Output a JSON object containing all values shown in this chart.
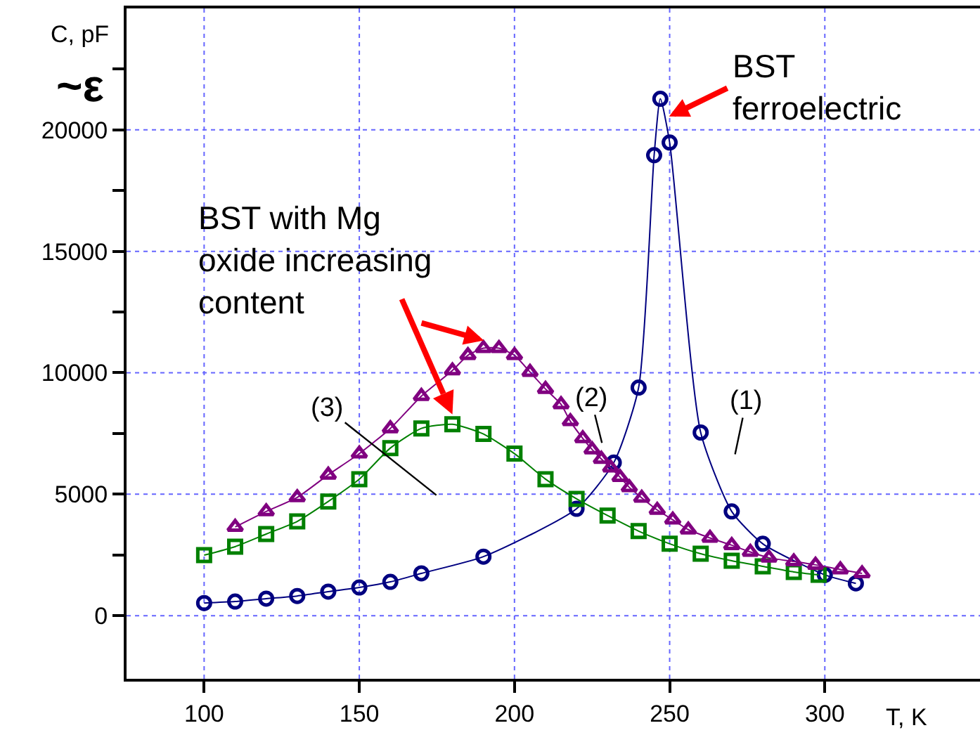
{
  "chart_data": {
    "type": "line",
    "xlabel": "T, K",
    "ylabel": "C, pF",
    "xlim": [
      75,
      350
    ],
    "xticks": [
      100,
      150,
      200,
      250,
      300
    ],
    "ylim": [
      -2600,
      25000
    ],
    "yticks": [
      0,
      {
        "value": 2500,
        "label": null
      },
      5000,
      {
        "value": 7500,
        "label": null
      },
      10000,
      {
        "value": 12500,
        "label": null
      },
      15000,
      {
        "value": 17500,
        "label": null
      },
      20000,
      {
        "value": 22500,
        "label": null
      }
    ],
    "grid": true,
    "line_style": "solid",
    "series": [
      {
        "color": "#000080",
        "marker": "circle",
        "x": [
          100,
          110,
          120,
          130,
          140,
          150,
          160,
          170,
          190,
          220,
          232,
          240,
          245,
          247,
          250,
          260,
          270,
          280,
          300,
          310
        ],
        "values": [
          520,
          580,
          700,
          810,
          990,
          1160,
          1390,
          1740,
          2430,
          4400,
          6300,
          9390,
          18960,
          21280,
          19480,
          7540,
          4290,
          2960,
          1680,
          1330
        ]
      },
      {
        "color": "#008000",
        "marker": "square",
        "x": [
          100,
          110,
          120,
          130,
          140,
          150,
          160,
          170,
          180,
          190,
          200,
          210,
          220,
          230,
          240,
          250,
          260,
          270,
          280,
          290,
          298
        ],
        "values": [
          2490,
          2840,
          3360,
          3880,
          4700,
          5620,
          6900,
          7710,
          7880,
          7480,
          6670,
          5620,
          4810,
          4120,
          3480,
          2960,
          2550,
          2260,
          2030,
          1800,
          1680
        ]
      },
      {
        "color": "#800080",
        "marker": "triangle",
        "x": [
          110,
          120,
          130,
          140,
          150,
          160,
          170,
          180,
          185,
          190,
          195,
          200,
          205,
          210,
          215,
          218,
          222,
          225,
          228,
          231,
          234,
          237,
          241,
          246,
          251,
          256,
          263,
          270,
          276,
          282,
          290,
          297,
          305,
          312
        ],
        "values": [
          3650,
          4290,
          4870,
          5800,
          6670,
          7710,
          9040,
          10090,
          10720,
          11010,
          11010,
          10720,
          10030,
          9330,
          8700,
          8000,
          7300,
          6840,
          6450,
          6090,
          5700,
          5280,
          4850,
          4350,
          3950,
          3540,
          3200,
          2900,
          2620,
          2380,
          2230,
          2090,
          1900,
          1740
        ]
      }
    ],
    "annotations": [
      {
        "text": "BST\nferroelectric",
        "x": 249,
        "y": 20500
      },
      {
        "text": "BST with Mg\noxide increasing\ncontent",
        "x": 191,
        "y": 11300
      },
      "(1)",
      "(2)",
      "(3)",
      "~ε"
    ]
  }
}
